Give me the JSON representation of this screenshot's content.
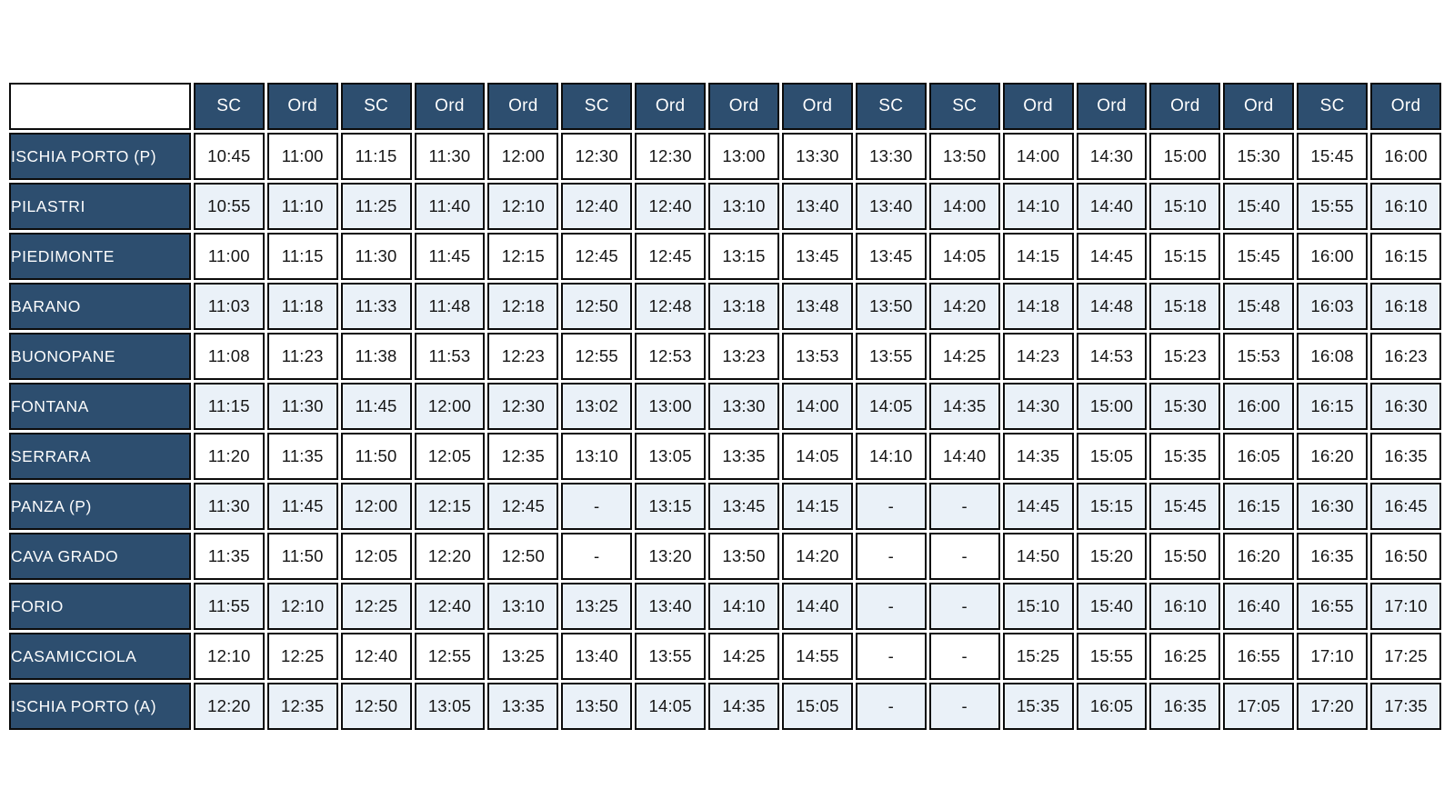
{
  "colors": {
    "header_bg": "#2d4e6f",
    "stripe_bg": "#eaf1f8",
    "row_bg": "#ffffff",
    "border": "#0b0b0b",
    "text_dark": "#161616",
    "text_light": "#fdfdfd"
  },
  "table": {
    "corner_label": "",
    "no_service_symbol": "-",
    "column_types": [
      "SC",
      "Ord",
      "SC",
      "Ord",
      "Ord",
      "SC",
      "Ord",
      "Ord",
      "Ord",
      "SC",
      "SC",
      "Ord",
      "Ord",
      "Ord",
      "Ord",
      "SC",
      "Ord"
    ],
    "rows": [
      {
        "station": "ISCHIA PORTO (P)",
        "times": [
          "10:45",
          "11:00",
          "11:15",
          "11:30",
          "12:00",
          "12:30",
          "12:30",
          "13:00",
          "13:30",
          "13:30",
          "13:50",
          "14:00",
          "14:30",
          "15:00",
          "15:30",
          "15:45",
          "16:00"
        ]
      },
      {
        "station": "PILASTRI",
        "times": [
          "10:55",
          "11:10",
          "11:25",
          "11:40",
          "12:10",
          "12:40",
          "12:40",
          "13:10",
          "13:40",
          "13:40",
          "14:00",
          "14:10",
          "14:40",
          "15:10",
          "15:40",
          "15:55",
          "16:10"
        ]
      },
      {
        "station": "PIEDIMONTE",
        "times": [
          "11:00",
          "11:15",
          "11:30",
          "11:45",
          "12:15",
          "12:45",
          "12:45",
          "13:15",
          "13:45",
          "13:45",
          "14:05",
          "14:15",
          "14:45",
          "15:15",
          "15:45",
          "16:00",
          "16:15"
        ]
      },
      {
        "station": "BARANO",
        "times": [
          "11:03",
          "11:18",
          "11:33",
          "11:48",
          "12:18",
          "12:50",
          "12:48",
          "13:18",
          "13:48",
          "13:50",
          "14:20",
          "14:18",
          "14:48",
          "15:18",
          "15:48",
          "16:03",
          "16:18"
        ]
      },
      {
        "station": "BUONOPANE",
        "times": [
          "11:08",
          "11:23",
          "11:38",
          "11:53",
          "12:23",
          "12:55",
          "12:53",
          "13:23",
          "13:53",
          "13:55",
          "14:25",
          "14:23",
          "14:53",
          "15:23",
          "15:53",
          "16:08",
          "16:23"
        ]
      },
      {
        "station": "FONTANA",
        "times": [
          "11:15",
          "11:30",
          "11:45",
          "12:00",
          "12:30",
          "13:02",
          "13:00",
          "13:30",
          "14:00",
          "14:05",
          "14:35",
          "14:30",
          "15:00",
          "15:30",
          "16:00",
          "16:15",
          "16:30"
        ]
      },
      {
        "station": "SERRARA",
        "times": [
          "11:20",
          "11:35",
          "11:50",
          "12:05",
          "12:35",
          "13:10",
          "13:05",
          "13:35",
          "14:05",
          "14:10",
          "14:40",
          "14:35",
          "15:05",
          "15:35",
          "16:05",
          "16:20",
          "16:35"
        ]
      },
      {
        "station": "PANZA (P)",
        "times": [
          "11:30",
          "11:45",
          "12:00",
          "12:15",
          "12:45",
          "-",
          "13:15",
          "13:45",
          "14:15",
          "-",
          "-",
          "14:45",
          "15:15",
          "15:45",
          "16:15",
          "16:30",
          "16:45"
        ]
      },
      {
        "station": "CAVA GRADO",
        "times": [
          "11:35",
          "11:50",
          "12:05",
          "12:20",
          "12:50",
          "-",
          "13:20",
          "13:50",
          "14:20",
          "-",
          "-",
          "14:50",
          "15:20",
          "15:50",
          "16:20",
          "16:35",
          "16:50"
        ]
      },
      {
        "station": "FORIO",
        "times": [
          "11:55",
          "12:10",
          "12:25",
          "12:40",
          "13:10",
          "13:25",
          "13:40",
          "14:10",
          "14:40",
          "-",
          "-",
          "15:10",
          "15:40",
          "16:10",
          "16:40",
          "16:55",
          "17:10"
        ]
      },
      {
        "station": "CASAMICCIOLA",
        "times": [
          "12:10",
          "12:25",
          "12:40",
          "12:55",
          "13:25",
          "13:40",
          "13:55",
          "14:25",
          "14:55",
          "-",
          "-",
          "15:25",
          "15:55",
          "16:25",
          "16:55",
          "17:10",
          "17:25"
        ]
      },
      {
        "station": "ISCHIA PORTO (A)",
        "times": [
          "12:20",
          "12:35",
          "12:50",
          "13:05",
          "13:35",
          "13:50",
          "14:05",
          "14:35",
          "15:05",
          "-",
          "-",
          "15:35",
          "16:05",
          "16:35",
          "17:05",
          "17:20",
          "17:35"
        ]
      }
    ]
  }
}
